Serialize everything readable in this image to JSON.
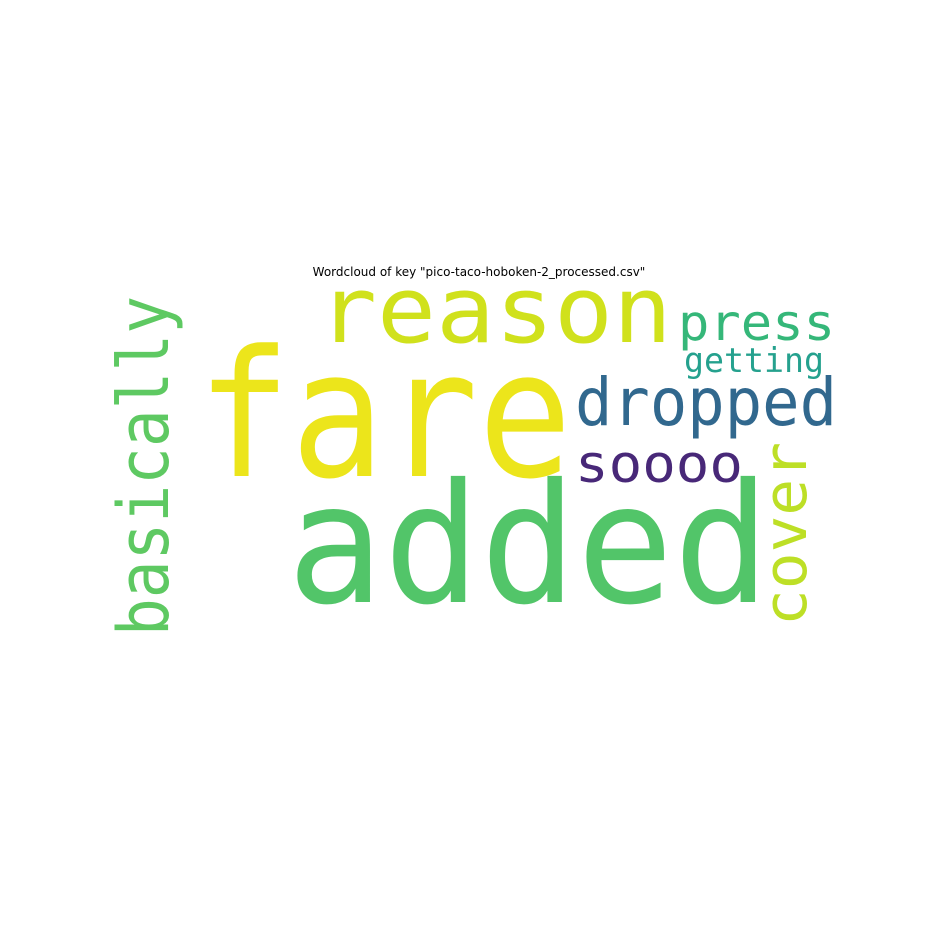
{
  "chart_data": {
    "type": "wordcloud",
    "title": "Wordcloud of key \"pico-taco-hoboken-2_processed.csv\"",
    "words": [
      {
        "text": "fare",
        "color": "#ece51b"
      },
      {
        "text": "added",
        "color": "#52c569"
      },
      {
        "text": "reason",
        "color": "#d0e11c"
      },
      {
        "text": "basically",
        "color": "#5ec962"
      },
      {
        "text": "dropped",
        "color": "#31688e"
      },
      {
        "text": "press",
        "color": "#35b779"
      },
      {
        "text": "getting",
        "color": "#25a18e"
      },
      {
        "text": "soooo",
        "color": "#482878"
      },
      {
        "text": "cover",
        "color": "#bddf26"
      }
    ],
    "background": "#ffffff"
  }
}
